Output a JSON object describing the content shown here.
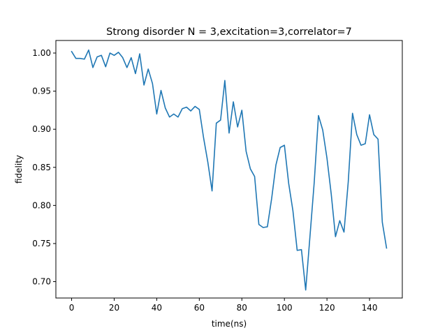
{
  "chart_data": {
    "type": "line",
    "title": "Strong disorder N =  3,excitation=3,correlator=7",
    "xlabel": "time(ns)",
    "ylabel": "fidelity",
    "xlim": [
      -7.4,
      155.4
    ],
    "ylim": [
      0.6785,
      1.0165
    ],
    "xticks": [
      0,
      20,
      40,
      60,
      80,
      100,
      120,
      140
    ],
    "xtick_labels": [
      "0",
      "20",
      "40",
      "60",
      "80",
      "100",
      "120",
      "140"
    ],
    "yticks": [
      0.7,
      0.75,
      0.8,
      0.85,
      0.9,
      0.95,
      1.0
    ],
    "ytick_labels": [
      "0.70",
      "0.75",
      "0.80",
      "0.85",
      "0.90",
      "0.95",
      "1.00"
    ],
    "grid": false,
    "colors": {
      "line": "#1f77b4"
    },
    "series": [
      {
        "x": [
          0,
          2,
          4,
          6,
          8,
          10,
          12,
          14,
          16,
          18,
          20,
          22,
          24,
          26,
          28,
          30,
          32,
          34,
          36,
          38,
          40,
          42,
          44,
          46,
          48,
          50,
          52,
          54,
          56,
          58,
          60,
          62,
          64,
          66,
          68,
          70,
          72,
          74,
          76,
          78,
          80,
          82,
          84,
          86,
          88,
          90,
          92,
          94,
          96,
          98,
          100,
          102,
          104,
          106,
          108,
          110,
          112,
          114,
          116,
          118,
          120,
          122,
          124,
          126,
          128,
          130,
          132,
          134,
          136,
          138,
          140,
          142,
          144,
          146,
          148
        ],
        "values": [
          1.002,
          0.993,
          0.993,
          0.992,
          1.004,
          0.981,
          0.995,
          0.997,
          0.982,
          1.0,
          0.997,
          1.001,
          0.994,
          0.981,
          0.994,
          0.973,
          0.999,
          0.958,
          0.979,
          0.96,
          0.92,
          0.951,
          0.928,
          0.916,
          0.92,
          0.916,
          0.927,
          0.929,
          0.924,
          0.93,
          0.926,
          0.889,
          0.857,
          0.819,
          0.908,
          0.912,
          0.964,
          0.895,
          0.936,
          0.903,
          0.925,
          0.871,
          0.848,
          0.838,
          0.775,
          0.771,
          0.772,
          0.809,
          0.853,
          0.876,
          0.879,
          0.829,
          0.793,
          0.741,
          0.742,
          0.689,
          0.759,
          0.83,
          0.918,
          0.899,
          0.862,
          0.815,
          0.759,
          0.78,
          0.765,
          0.831,
          0.921,
          0.893,
          0.879,
          0.881,
          0.919,
          0.893,
          0.887,
          0.778,
          0.744
        ]
      }
    ]
  }
}
